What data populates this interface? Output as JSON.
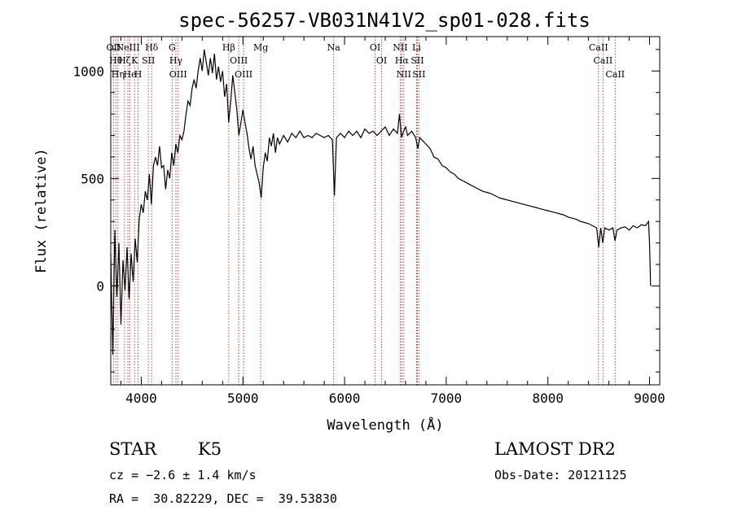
{
  "header": {
    "title": "spec-56257-VB031N41V2_sp01-028.fits"
  },
  "chart_data": {
    "type": "line",
    "title": "spec-56257-VB031N41V2_sp01-028.fits",
    "xlabel": "Wavelength (Å)",
    "ylabel": "Flux (relative)",
    "xlim": [
      3700,
      9100
    ],
    "ylim": [
      -460,
      1160
    ],
    "xticks": [
      4000,
      5000,
      6000,
      7000,
      8000,
      9000
    ],
    "yticks": [
      0,
      500,
      1000
    ],
    "grid": false,
    "series": [
      {
        "color": "#000000",
        "points": [
          [
            3700,
            150
          ],
          [
            3720,
            -320
          ],
          [
            3740,
            260
          ],
          [
            3760,
            -50
          ],
          [
            3780,
            200
          ],
          [
            3800,
            -180
          ],
          [
            3820,
            120
          ],
          [
            3840,
            -20
          ],
          [
            3860,
            180
          ],
          [
            3880,
            -60
          ],
          [
            3900,
            150
          ],
          [
            3920,
            20
          ],
          [
            3940,
            220
          ],
          [
            3960,
            110
          ],
          [
            3980,
            310
          ],
          [
            4000,
            380
          ],
          [
            4020,
            340
          ],
          [
            4040,
            440
          ],
          [
            4060,
            400
          ],
          [
            4080,
            520
          ],
          [
            4100,
            380
          ],
          [
            4120,
            560
          ],
          [
            4140,
            600
          ],
          [
            4160,
            560
          ],
          [
            4180,
            650
          ],
          [
            4200,
            550
          ],
          [
            4220,
            560
          ],
          [
            4240,
            450
          ],
          [
            4260,
            540
          ],
          [
            4280,
            500
          ],
          [
            4300,
            620
          ],
          [
            4320,
            560
          ],
          [
            4340,
            660
          ],
          [
            4360,
            620
          ],
          [
            4380,
            700
          ],
          [
            4400,
            680
          ],
          [
            4420,
            720
          ],
          [
            4440,
            800
          ],
          [
            4460,
            860
          ],
          [
            4480,
            840
          ],
          [
            4500,
            920
          ],
          [
            4520,
            960
          ],
          [
            4540,
            920
          ],
          [
            4560,
            1000
          ],
          [
            4580,
            1060
          ],
          [
            4600,
            1000
          ],
          [
            4620,
            1100
          ],
          [
            4640,
            1040
          ],
          [
            4660,
            980
          ],
          [
            4680,
            1060
          ],
          [
            4700,
            990
          ],
          [
            4720,
            1080
          ],
          [
            4740,
            960
          ],
          [
            4760,
            1020
          ],
          [
            4780,
            950
          ],
          [
            4800,
            1000
          ],
          [
            4820,
            880
          ],
          [
            4840,
            940
          ],
          [
            4860,
            760
          ],
          [
            4880,
            860
          ],
          [
            4900,
            980
          ],
          [
            4920,
            900
          ],
          [
            4940,
            820
          ],
          [
            4960,
            700
          ],
          [
            4980,
            760
          ],
          [
            5000,
            820
          ],
          [
            5020,
            760
          ],
          [
            5040,
            710
          ],
          [
            5060,
            640
          ],
          [
            5080,
            590
          ],
          [
            5100,
            650
          ],
          [
            5120,
            560
          ],
          [
            5140,
            520
          ],
          [
            5160,
            480
          ],
          [
            5180,
            410
          ],
          [
            5200,
            550
          ],
          [
            5220,
            620
          ],
          [
            5240,
            580
          ],
          [
            5260,
            690
          ],
          [
            5280,
            650
          ],
          [
            5300,
            710
          ],
          [
            5320,
            620
          ],
          [
            5340,
            690
          ],
          [
            5360,
            660
          ],
          [
            5400,
            700
          ],
          [
            5440,
            670
          ],
          [
            5480,
            710
          ],
          [
            5520,
            690
          ],
          [
            5560,
            720
          ],
          [
            5600,
            690
          ],
          [
            5640,
            700
          ],
          [
            5680,
            690
          ],
          [
            5720,
            710
          ],
          [
            5760,
            700
          ],
          [
            5800,
            690
          ],
          [
            5840,
            700
          ],
          [
            5880,
            680
          ],
          [
            5900,
            420
          ],
          [
            5920,
            690
          ],
          [
            5960,
            710
          ],
          [
            6000,
            690
          ],
          [
            6040,
            720
          ],
          [
            6080,
            700
          ],
          [
            6120,
            720
          ],
          [
            6160,
            690
          ],
          [
            6200,
            730
          ],
          [
            6240,
            710
          ],
          [
            6280,
            720
          ],
          [
            6320,
            700
          ],
          [
            6360,
            720
          ],
          [
            6400,
            740
          ],
          [
            6440,
            700
          ],
          [
            6480,
            730
          ],
          [
            6520,
            710
          ],
          [
            6540,
            800
          ],
          [
            6560,
            690
          ],
          [
            6580,
            720
          ],
          [
            6600,
            740
          ],
          [
            6620,
            700
          ],
          [
            6660,
            720
          ],
          [
            6700,
            690
          ],
          [
            6720,
            640
          ],
          [
            6740,
            690
          ],
          [
            6760,
            680
          ],
          [
            6800,
            660
          ],
          [
            6840,
            640
          ],
          [
            6880,
            600
          ],
          [
            6920,
            590
          ],
          [
            6960,
            560
          ],
          [
            7000,
            550
          ],
          [
            7040,
            530
          ],
          [
            7080,
            520
          ],
          [
            7120,
            500
          ],
          [
            7160,
            490
          ],
          [
            7200,
            480
          ],
          [
            7240,
            470
          ],
          [
            7280,
            460
          ],
          [
            7320,
            450
          ],
          [
            7360,
            440
          ],
          [
            7400,
            435
          ],
          [
            7440,
            430
          ],
          [
            7480,
            420
          ],
          [
            7520,
            410
          ],
          [
            7560,
            405
          ],
          [
            7600,
            400
          ],
          [
            7640,
            395
          ],
          [
            7680,
            390
          ],
          [
            7720,
            385
          ],
          [
            7760,
            380
          ],
          [
            7800,
            375
          ],
          [
            7840,
            370
          ],
          [
            7880,
            365
          ],
          [
            7920,
            360
          ],
          [
            7960,
            355
          ],
          [
            8000,
            350
          ],
          [
            8040,
            345
          ],
          [
            8080,
            340
          ],
          [
            8120,
            335
          ],
          [
            8160,
            330
          ],
          [
            8200,
            320
          ],
          [
            8240,
            315
          ],
          [
            8280,
            310
          ],
          [
            8320,
            300
          ],
          [
            8360,
            295
          ],
          [
            8400,
            290
          ],
          [
            8440,
            280
          ],
          [
            8480,
            270
          ],
          [
            8500,
            180
          ],
          [
            8520,
            270
          ],
          [
            8540,
            200
          ],
          [
            8560,
            270
          ],
          [
            8600,
            260
          ],
          [
            8640,
            270
          ],
          [
            8660,
            210
          ],
          [
            8680,
            260
          ],
          [
            8720,
            270
          ],
          [
            8760,
            275
          ],
          [
            8800,
            260
          ],
          [
            8840,
            280
          ],
          [
            8880,
            270
          ],
          [
            8920,
            285
          ],
          [
            8960,
            280
          ],
          [
            8990,
            300
          ],
          [
            9000,
            200
          ],
          [
            9010,
            0
          ]
        ]
      }
    ],
    "lines": [
      {
        "x": 3727,
        "label": "OII"
      },
      {
        "x": 3750,
        "label": "Hθ"
      },
      {
        "x": 3771,
        "label": "Hη"
      },
      {
        "x": 3835,
        "label": "Hζ"
      },
      {
        "x": 3869,
        "label": "NeIII"
      },
      {
        "x": 3889,
        "label": "He"
      },
      {
        "x": 3934,
        "label": "K"
      },
      {
        "x": 3969,
        "label": "H"
      },
      {
        "x": 4070,
        "label": "SII"
      },
      {
        "x": 4102,
        "label": "Hδ"
      },
      {
        "x": 4304,
        "label": "G"
      },
      {
        "x": 4341,
        "label": "Hγ"
      },
      {
        "x": 4363,
        "label": "OIII"
      },
      {
        "x": 4861,
        "label": "Hβ"
      },
      {
        "x": 4959,
        "label": "OIII"
      },
      {
        "x": 5007,
        "label": "OIII"
      },
      {
        "x": 5175,
        "label": "Mg"
      },
      {
        "x": 5893,
        "label": "Na"
      },
      {
        "x": 6300,
        "label": "OI"
      },
      {
        "x": 6364,
        "label": "OI"
      },
      {
        "x": 6548,
        "label": "NII"
      },
      {
        "x": 6563,
        "label": "Hα"
      },
      {
        "x": 6583,
        "label": "NII"
      },
      {
        "x": 6708,
        "label": "Li"
      },
      {
        "x": 6716,
        "label": "SII"
      },
      {
        "x": 6731,
        "label": "SII"
      },
      {
        "x": 8498,
        "label": "CaII"
      },
      {
        "x": 8542,
        "label": "CaII"
      },
      {
        "x": 8662,
        "label": "CaII"
      }
    ]
  },
  "info": {
    "class_label": "STAR",
    "subclass": "K5",
    "survey": "LAMOST DR2",
    "redshift": "cz = −2.6 ± 1.4 km/s",
    "obs_date": "Obs-Date: 20121125",
    "coords": "RA =  30.82229, DEC =  39.53830"
  }
}
